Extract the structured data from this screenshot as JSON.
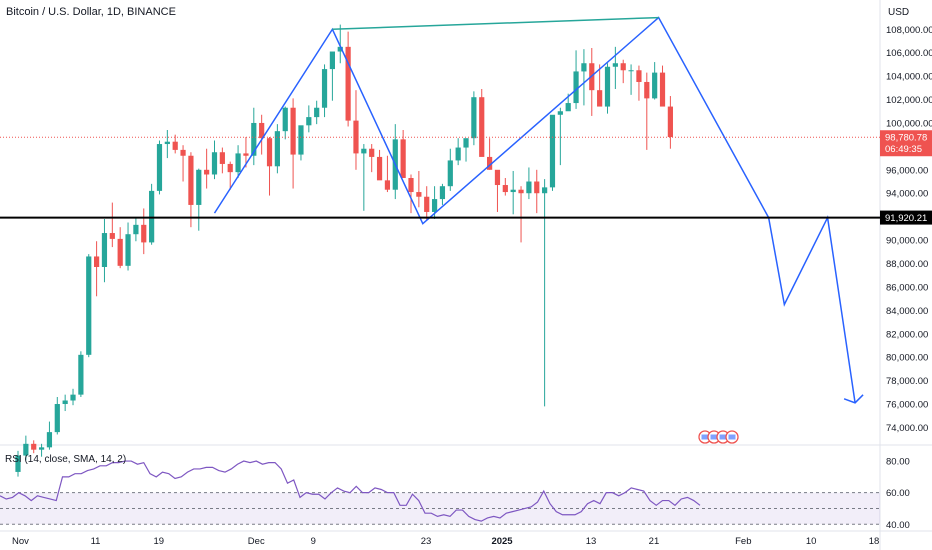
{
  "chart_data": {
    "type": "candlestick",
    "title": "Bitcoin / U.S. Dollar, 1D, BINANCE",
    "currency_label": "USD",
    "y_ticks": [
      74000,
      76000,
      78000,
      80000,
      82000,
      84000,
      86000,
      88000,
      90000,
      92000,
      94000,
      96000,
      98000,
      100000,
      102000,
      104000,
      106000,
      108000
    ],
    "y_tick_labels": [
      "74,000.00",
      "76,000.00",
      "78,000.00",
      "80,000.00",
      "82,000.00",
      "84,000.00",
      "86,000.00",
      "88,000.00",
      "90,000.00",
      "92,000.00",
      "94,000.00",
      "96,000.00",
      "98,000.00",
      "100,000.00",
      "102,000.00",
      "104,000.00",
      "106,000.00",
      "108,000.00"
    ],
    "ylim": [
      72500,
      110500
    ],
    "x_ticks": [
      {
        "label": "Nov",
        "day": 0,
        "bold": false
      },
      {
        "label": "11",
        "day": 10,
        "bold": false
      },
      {
        "label": "19",
        "day": 18,
        "bold": false
      },
      {
        "label": "Dec",
        "day": 30,
        "bold": false
      },
      {
        "label": "9",
        "day": 38,
        "bold": false
      },
      {
        "label": "23",
        "day": 52,
        "bold": false
      },
      {
        "label": "2025",
        "day": 61,
        "bold": true
      },
      {
        "label": "13",
        "day": 73,
        "bold": false
      },
      {
        "label": "21",
        "day": 81,
        "bold": false
      },
      {
        "label": "Feb",
        "day": 92,
        "bold": false
      },
      {
        "label": "10",
        "day": 101,
        "bold": false
      },
      {
        "label": "18",
        "day": 109,
        "bold": false
      }
    ],
    "support_level": {
      "value": 91920.21,
      "label": "91,920.21"
    },
    "last_price": {
      "value": 98780.78,
      "label": "98,780.78",
      "countdown": "06:49:35"
    },
    "candles_ohlc": [
      [
        70200,
        72000,
        69800,
        71600
      ],
      [
        71600,
        73300,
        71200,
        72600
      ],
      [
        72600,
        72900,
        71800,
        72100
      ],
      [
        72100,
        72600,
        71500,
        72300
      ],
      [
        72300,
        74500,
        72100,
        73600
      ],
      [
        73600,
        76600,
        73400,
        76000
      ],
      [
        76000,
        76800,
        75400,
        76300
      ],
      [
        76300,
        77300,
        75900,
        76800
      ],
      [
        76800,
        80500,
        76600,
        80200
      ],
      [
        80200,
        88800,
        80000,
        88600
      ],
      [
        88600,
        89900,
        85200,
        87700
      ],
      [
        87700,
        91800,
        86400,
        90600
      ],
      [
        90600,
        93200,
        89400,
        90100
      ],
      [
        90100,
        91100,
        87600,
        87800
      ],
      [
        87800,
        91500,
        87400,
        90500
      ],
      [
        90500,
        91900,
        89900,
        91300
      ],
      [
        91300,
        92700,
        88800,
        89800
      ],
      [
        89800,
        94800,
        89600,
        94200
      ],
      [
        94200,
        98500,
        93900,
        98200
      ],
      [
        98200,
        99400,
        97000,
        98400
      ],
      [
        98400,
        99000,
        97400,
        97700
      ],
      [
        97700,
        98100,
        95000,
        97200
      ],
      [
        97200,
        97500,
        91100,
        93000
      ],
      [
        93000,
        96100,
        90800,
        96000
      ],
      [
        96000,
        97800,
        94400,
        95600
      ],
      [
        95600,
        98500,
        95200,
        97500
      ],
      [
        97500,
        97900,
        95700,
        96500
      ],
      [
        96500,
        96700,
        94300,
        95800
      ],
      [
        95800,
        98100,
        95300,
        97400
      ],
      [
        97400,
        98800,
        96200,
        97200
      ],
      [
        97200,
        101300,
        96400,
        100000
      ],
      [
        100000,
        100700,
        97300,
        98700
      ],
      [
        98700,
        98800,
        93800,
        96300
      ],
      [
        96300,
        99900,
        95700,
        99300
      ],
      [
        99300,
        101400,
        98600,
        101300
      ],
      [
        101300,
        102100,
        94400,
        97300
      ],
      [
        97300,
        99700,
        96800,
        99800
      ],
      [
        99800,
        101500,
        99200,
        100500
      ],
      [
        100500,
        101900,
        99900,
        101300
      ],
      [
        101300,
        105000,
        100500,
        104600
      ],
      [
        104600,
        105500,
        101900,
        106100
      ],
      [
        106100,
        108400,
        105100,
        106500
      ],
      [
        106500,
        107800,
        99700,
        100200
      ],
      [
        100200,
        102800,
        96000,
        97400
      ],
      [
        97400,
        98200,
        92500,
        97800
      ],
      [
        97800,
        98200,
        95800,
        97100
      ],
      [
        97100,
        97700,
        95700,
        95100
      ],
      [
        95100,
        97200,
        94100,
        94300
      ],
      [
        94300,
        99900,
        93500,
        98600
      ],
      [
        98600,
        99400,
        97400,
        95300
      ],
      [
        95300,
        95600,
        92300,
        94100
      ],
      [
        94100,
        95900,
        92800,
        93700
      ],
      [
        93700,
        94600,
        91700,
        92400
      ],
      [
        92400,
        94600,
        91800,
        93500
      ],
      [
        93500,
        94800,
        93000,
        94600
      ],
      [
        94600,
        97800,
        94200,
        96800
      ],
      [
        96800,
        98700,
        96400,
        97900
      ],
      [
        97900,
        98500,
        96700,
        98700
      ],
      [
        98700,
        102700,
        98100,
        102200
      ],
      [
        102200,
        102900,
        97200,
        97100
      ],
      [
        97100,
        98700,
        96000,
        96000
      ],
      [
        96000,
        95800,
        92400,
        94700
      ],
      [
        94700,
        95300,
        93800,
        94100
      ],
      [
        94100,
        95900,
        92200,
        94300
      ],
      [
        94300,
        94600,
        89800,
        94000
      ],
      [
        94000,
        96200,
        93500,
        95000
      ],
      [
        95000,
        96000,
        92300,
        94000
      ],
      [
        94000,
        95200,
        75800,
        94500
      ],
      [
        94500,
        100000,
        94200,
        100700
      ],
      [
        100700,
        101300,
        96400,
        101000
      ],
      [
        101000,
        102500,
        101200,
        101700
      ],
      [
        101700,
        106200,
        101200,
        104400
      ],
      [
        104400,
        106300,
        101500,
        105100
      ],
      [
        105100,
        106400,
        100600,
        102800
      ],
      [
        102800,
        105000,
        102400,
        101400
      ],
      [
        101400,
        105100,
        100800,
        104800
      ],
      [
        104800,
        106500,
        102900,
        105100
      ],
      [
        105100,
        105400,
        103400,
        104500
      ],
      [
        104500,
        105000,
        102400,
        104500
      ],
      [
        104500,
        104900,
        101900,
        103500
      ],
      [
        103500,
        104300,
        97700,
        102100
      ],
      [
        102100,
        105200,
        102000,
        104300
      ],
      [
        104300,
        104900,
        102800,
        101400
      ],
      [
        101400,
        102300,
        97800,
        98800
      ]
    ],
    "candle_day_start": 0,
    "pattern_line_points": [
      {
        "day": 25,
        "price": 92300
      },
      {
        "day": 40,
        "price": 108000
      },
      {
        "day": 51.5,
        "price": 91400
      },
      {
        "day": 81.5,
        "price": 109000
      },
      {
        "day": 95.5,
        "price": 91920
      },
      {
        "day": 97.5,
        "price": 84500
      },
      {
        "day": 103,
        "price": 91920
      },
      {
        "day": 106.5,
        "price": 76100
      }
    ],
    "neckline_points": [
      {
        "day": 40,
        "price": 108000
      },
      {
        "day": 81.5,
        "price": 109000
      }
    ],
    "rsi": {
      "label": "RSI (14, close, SMA, 14, 2)",
      "ylim": [
        37,
        87
      ],
      "ticks": [
        40,
        60,
        80
      ],
      "tick_labels": [
        "40.00",
        "60.00",
        "80.00"
      ],
      "band_upper": 60,
      "band_lower": 40,
      "band_mid": 50,
      "values": [
        58,
        56,
        57,
        60,
        58,
        55,
        58,
        57,
        56,
        55,
        70,
        70,
        72,
        72,
        74,
        75,
        77,
        77,
        79,
        79,
        80,
        80,
        78,
        79,
        72,
        70,
        73,
        72,
        69,
        70,
        73,
        75,
        75,
        76,
        76,
        74,
        73,
        75,
        78,
        80,
        79,
        80,
        78,
        79,
        79,
        75,
        66,
        68,
        57,
        60,
        59,
        59,
        56,
        60,
        63,
        61,
        60,
        64,
        60,
        60,
        63,
        62,
        60,
        60,
        52,
        52,
        59,
        55,
        47,
        47,
        45,
        46,
        45,
        49,
        49,
        45,
        43,
        42,
        44,
        45,
        44,
        47,
        48,
        49,
        50,
        51,
        54,
        61,
        53,
        48,
        46,
        46,
        46,
        48,
        53,
        55,
        53,
        60,
        60,
        58,
        60,
        63,
        62,
        61,
        55,
        52,
        55,
        55,
        52,
        56,
        57,
        55,
        52
      ],
      "values_label": "daily"
    },
    "event_icons": [
      "flag-icon-us",
      "flag-icon-us",
      "flag-icon-us",
      "flag-icon-us"
    ]
  }
}
